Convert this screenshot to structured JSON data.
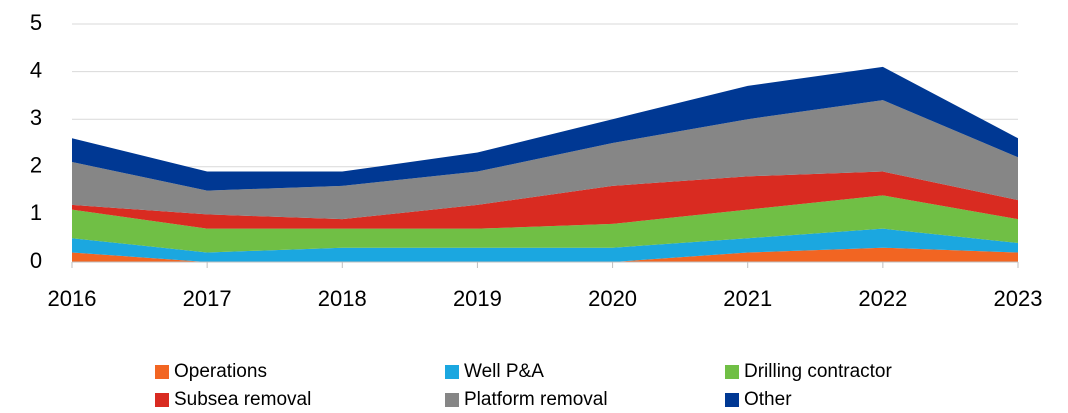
{
  "chart_data": {
    "type": "area",
    "stacked": true,
    "categories": [
      "2016",
      "2017",
      "2018",
      "2019",
      "2020",
      "2021",
      "2022",
      "2023"
    ],
    "series": [
      {
        "name": "Operations",
        "color": "#f26522",
        "values": [
          0.2,
          0,
          0,
          0,
          0,
          0.2,
          0.3,
          0.2
        ]
      },
      {
        "name": "Well P&A",
        "color": "#1ba7e0",
        "values": [
          0.3,
          0.2,
          0.3,
          0.3,
          0.3,
          0.3,
          0.4,
          0.2
        ]
      },
      {
        "name": "Drilling contractor",
        "color": "#70bf45",
        "values": [
          0.6,
          0.5,
          0.4,
          0.4,
          0.5,
          0.6,
          0.7,
          0.5
        ]
      },
      {
        "name": "Subsea removal",
        "color": "#d92b21",
        "values": [
          0.1,
          0.3,
          0.2,
          0.5,
          0.8,
          0.7,
          0.5,
          0.4
        ]
      },
      {
        "name": "Platform removal",
        "color": "#868686",
        "values": [
          0.9,
          0.5,
          0.7,
          0.7,
          0.9,
          1.2,
          1.5,
          0.9
        ]
      },
      {
        "name": "Other",
        "color": "#003893",
        "values": [
          0.5,
          0.4,
          0.3,
          0.4,
          0.5,
          0.7,
          0.7,
          0.4
        ]
      }
    ],
    "ylim": [
      0,
      5
    ],
    "yticks": [
      0,
      1,
      2,
      3,
      4,
      5
    ],
    "grid": true,
    "legend": "bottom"
  }
}
